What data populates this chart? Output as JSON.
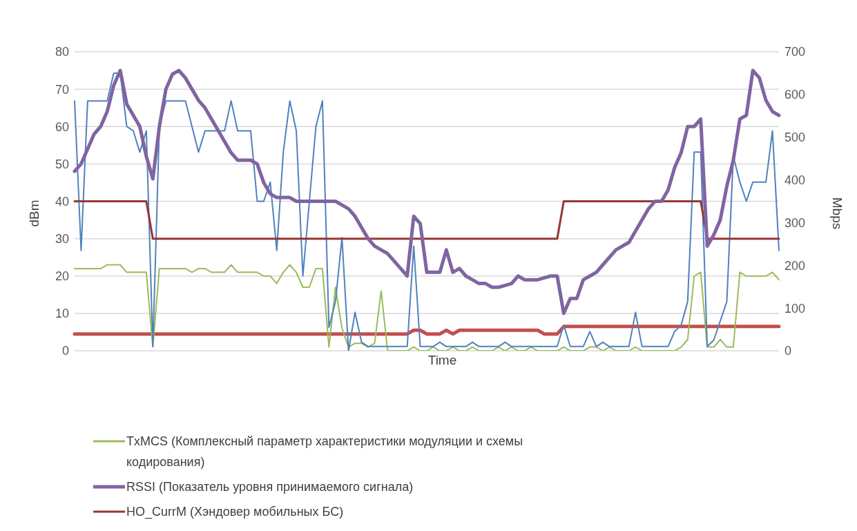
{
  "chart_data": {
    "type": "line",
    "xlabel": "Time",
    "ylabel": "dBm",
    "y2label": "Mbps",
    "categories": [
      null,
      null,
      null,
      null,
      null,
      null,
      null,
      null,
      null,
      null,
      null,
      null,
      null,
      null,
      null,
      null,
      null,
      null,
      null,
      null,
      null,
      null,
      null,
      null,
      null,
      null,
      null,
      null,
      null,
      null,
      null,
      null,
      null,
      null,
      null,
      null,
      null,
      null,
      null,
      null,
      null,
      null,
      null,
      null,
      null,
      null,
      null,
      null,
      null,
      null,
      null,
      null,
      null,
      null,
      null,
      null,
      null,
      null,
      null,
      null,
      null,
      null,
      null,
      null,
      null,
      null,
      null,
      null,
      null,
      null,
      null,
      null,
      null,
      null,
      null,
      null,
      null,
      null,
      null,
      null,
      null,
      null,
      null,
      null,
      null,
      null,
      null,
      null,
      null,
      null,
      null,
      null,
      null,
      null,
      null,
      null,
      null,
      null,
      null,
      null,
      null,
      null,
      null,
      null,
      null,
      null,
      null,
      null,
      null
    ],
    "series": [
      {
        "name": "TxMCS (Комплексный параметр характеристики модуляции и схемы кодирования)",
        "color": "#9bbb59",
        "values": [
          22,
          22,
          22,
          22,
          22,
          23,
          23,
          23,
          21,
          21,
          21,
          21,
          1,
          22,
          22,
          22,
          22,
          22,
          21,
          22,
          22,
          21,
          21,
          21,
          23,
          21,
          21,
          21,
          21,
          20,
          20,
          18,
          21,
          23,
          21,
          17,
          17,
          22,
          22,
          1,
          17,
          6,
          1,
          2,
          2,
          1,
          2,
          16,
          0,
          0,
          0,
          0,
          1,
          0,
          0,
          1,
          0,
          0,
          1,
          0,
          0,
          1,
          0,
          0,
          0,
          1,
          0,
          1,
          0,
          0,
          1,
          0,
          0,
          0,
          0,
          1,
          0,
          0,
          0,
          1,
          1,
          0,
          1,
          0,
          0,
          0,
          1,
          0,
          0,
          0,
          0,
          0,
          0,
          1,
          3,
          20,
          21,
          1,
          1,
          3,
          1,
          1,
          21,
          20,
          20,
          20,
          20,
          21,
          19
        ]
      },
      {
        "name": "RSSI (Показатель уровня принимаемого сигнала)",
        "color": "#8064a2",
        "values": [
          48,
          50,
          54,
          58,
          60,
          64,
          71,
          75,
          66,
          63,
          60,
          52,
          46,
          60,
          70,
          74,
          75,
          73,
          70,
          67,
          65,
          62,
          59,
          56,
          53,
          51,
          51,
          51,
          50,
          45,
          42,
          41,
          41,
          41,
          40,
          40,
          40,
          40,
          40,
          40,
          40,
          39,
          38,
          36,
          33,
          30,
          28,
          27,
          26,
          24,
          22,
          20,
          36,
          34,
          21,
          21,
          21,
          27,
          21,
          22,
          20,
          19,
          18,
          18,
          17,
          17,
          17.5,
          18,
          20,
          19,
          19,
          19,
          19.5,
          20,
          20,
          10,
          14,
          14,
          19,
          20,
          21,
          23,
          25,
          27,
          28,
          29,
          32,
          35,
          38,
          40,
          40,
          43,
          49,
          53,
          60,
          60,
          62,
          28,
          31,
          35,
          44,
          51,
          62,
          63,
          75,
          73,
          67,
          64,
          63
        ]
      },
      {
        "name": "HO_CurrM (Хэндовер мобильных БС)",
        "color": "#953735",
        "values": [
          40,
          40,
          40,
          40,
          40,
          40,
          40,
          40,
          40,
          40,
          40,
          40,
          30,
          30,
          30,
          30,
          30,
          30,
          30,
          30,
          30,
          30,
          30,
          30,
          30,
          30,
          30,
          30,
          30,
          30,
          30,
          30,
          30,
          30,
          30,
          30,
          30,
          30,
          30,
          30,
          30,
          30,
          30,
          30,
          30,
          30,
          30,
          30,
          30,
          30,
          30,
          30,
          30,
          30,
          30,
          30,
          30,
          30,
          30,
          30,
          30,
          30,
          30,
          30,
          30,
          30,
          30,
          30,
          30,
          30,
          30,
          30,
          30,
          30,
          30,
          40,
          40,
          40,
          40,
          40,
          40,
          40,
          40,
          40,
          40,
          40,
          40,
          40,
          40,
          40,
          40,
          40,
          40,
          40,
          40,
          40,
          40,
          30,
          30,
          30,
          30,
          30,
          30,
          30,
          30,
          30,
          30,
          30,
          30
        ]
      },
      {
        "color": "#4f81bd",
        "axis": "y2",
        "values": [
          585,
          235,
          585,
          585,
          585,
          585,
          650,
          650,
          525,
          515,
          465,
          515,
          10,
          525,
          585,
          585,
          585,
          585,
          525,
          465,
          515,
          515,
          515,
          515,
          585,
          515,
          515,
          515,
          350,
          350,
          395,
          235,
          465,
          585,
          515,
          175,
          350,
          525,
          585,
          55,
          115,
          265,
          0,
          90,
          20,
          10,
          10,
          10,
          10,
          10,
          10,
          10,
          245,
          10,
          10,
          10,
          20,
          10,
          10,
          10,
          10,
          20,
          10,
          10,
          10,
          10,
          20,
          10,
          10,
          10,
          10,
          10,
          10,
          10,
          10,
          60,
          10,
          10,
          10,
          45,
          10,
          20,
          10,
          10,
          10,
          10,
          90,
          10,
          10,
          10,
          10,
          10,
          45,
          60,
          115,
          465,
          465,
          10,
          25,
          70,
          115,
          455,
          395,
          350,
          395,
          395,
          395,
          515,
          235
        ]
      },
      {
        "color": "#c0504d",
        "values": [
          4.5,
          4.5,
          4.5,
          4.5,
          4.5,
          4.5,
          4.5,
          4.5,
          4.5,
          4.5,
          4.5,
          4.5,
          4.5,
          4.5,
          4.5,
          4.5,
          4.5,
          4.5,
          4.5,
          4.5,
          4.5,
          4.5,
          4.5,
          4.5,
          4.5,
          4.5,
          4.5,
          4.5,
          4.5,
          4.5,
          4.5,
          4.5,
          4.5,
          4.5,
          4.5,
          4.5,
          4.5,
          4.5,
          4.5,
          4.5,
          4.5,
          4.5,
          4.5,
          4.5,
          4.5,
          4.5,
          4.5,
          4.5,
          4.5,
          4.5,
          4.5,
          4.5,
          5.5,
          5.5,
          4.5,
          4.5,
          4.5,
          5.5,
          4.5,
          5.5,
          5.5,
          5.5,
          5.5,
          5.5,
          5.5,
          5.5,
          5.5,
          5.5,
          5.5,
          5.5,
          5.5,
          5.5,
          4.5,
          4.5,
          4.5,
          6.5,
          6.5,
          6.5,
          6.5,
          6.5,
          6.5,
          6.5,
          6.5,
          6.5,
          6.5,
          6.5,
          6.5,
          6.5,
          6.5,
          6.5,
          6.5,
          6.5,
          6.5,
          6.5,
          6.5,
          6.5,
          6.5,
          6.5,
          6.5,
          6.5,
          6.5,
          6.5,
          6.5,
          6.5,
          6.5,
          6.5,
          6.5,
          6.5,
          6.5
        ]
      }
    ],
    "ylim": [
      0,
      80
    ],
    "yticks": [
      0,
      10,
      20,
      30,
      40,
      50,
      60,
      70,
      80
    ],
    "y2lim": [
      0,
      700
    ],
    "y2ticks": [
      0,
      100,
      200,
      300,
      400,
      500,
      600,
      700
    ],
    "grid": "y",
    "legend": "bottom",
    "marker": "none",
    "line_style": "solid"
  }
}
